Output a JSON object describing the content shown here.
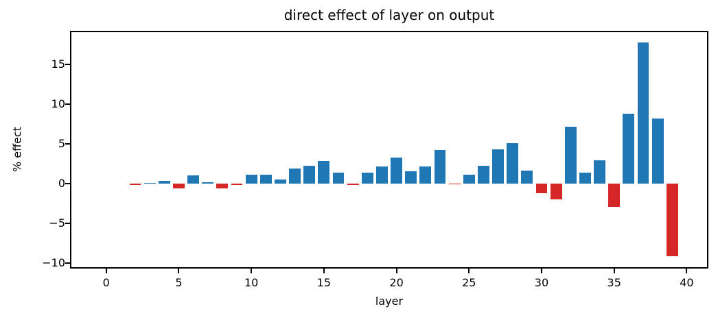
{
  "chart_data": {
    "type": "bar",
    "title": "direct effect of layer on output",
    "xlabel": "layer",
    "ylabel": "% effect",
    "x": [
      0,
      1,
      2,
      3,
      4,
      5,
      6,
      7,
      8,
      9,
      10,
      11,
      12,
      13,
      14,
      15,
      16,
      17,
      18,
      19,
      20,
      21,
      22,
      23,
      24,
      25,
      26,
      27,
      28,
      29,
      30,
      31,
      32,
      33,
      34,
      35,
      36,
      37,
      38,
      39
    ],
    "values": [
      0,
      0,
      -0.15,
      0.1,
      0.3,
      -0.65,
      1.0,
      0.15,
      -0.65,
      -0.15,
      1.1,
      1.1,
      0.5,
      1.9,
      2.2,
      2.8,
      1.4,
      -0.15,
      1.4,
      2.1,
      3.3,
      1.5,
      2.1,
      4.2,
      -0.1,
      1.1,
      2.2,
      4.3,
      5.1,
      1.6,
      -1.2,
      -2.0,
      7.1,
      1.4,
      2.9,
      -2.9,
      8.8,
      17.7,
      8.2,
      -9.1
    ],
    "bar_width_fraction": 0.8,
    "positive_color": "#1f77b4",
    "negative_color": "#d62728",
    "xlim": [
      -2.4,
      41.4
    ],
    "ylim": [
      -10.5,
      19.0
    ],
    "x_tick_values": [
      0,
      5,
      10,
      15,
      20,
      25,
      30,
      35,
      40
    ],
    "x_tick_labels": [
      "0",
      "5",
      "10",
      "15",
      "20",
      "25",
      "30",
      "35",
      "40"
    ],
    "y_tick_values": [
      -10,
      -5,
      0,
      5,
      10,
      15
    ],
    "y_tick_labels": [
      "−10",
      "−5",
      "0",
      "5",
      "10",
      "15"
    ],
    "grid": false,
    "legend_position": "none"
  }
}
